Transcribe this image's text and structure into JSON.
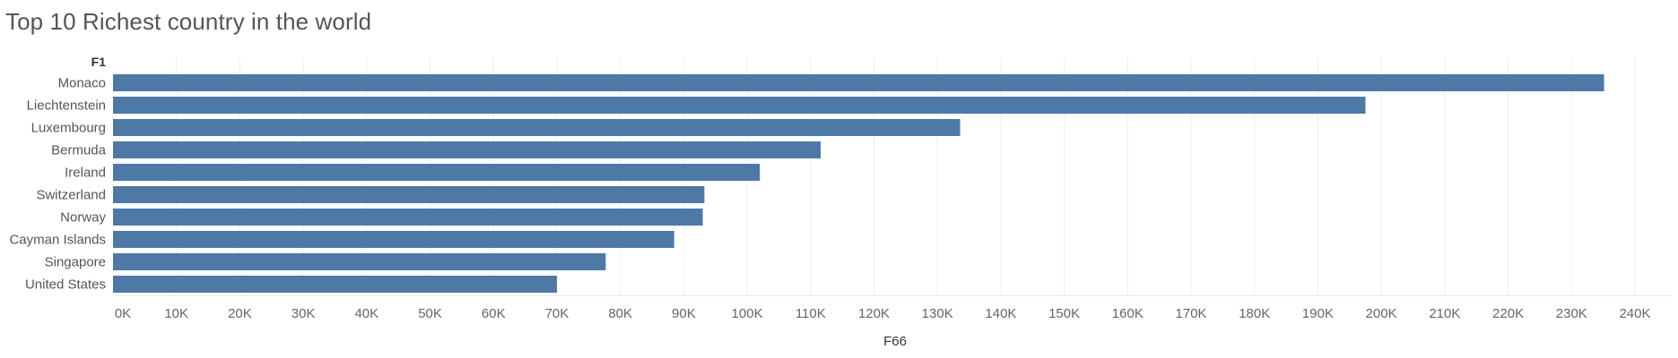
{
  "chart_data": {
    "type": "bar",
    "orientation": "horizontal",
    "title": "Top 10 Richest country in the world",
    "row_header": "F1",
    "xlabel": "F66",
    "categories": [
      "Monaco",
      "Liechtenstein",
      "Luxembourg",
      "Bermuda",
      "Ireland",
      "Switzerland",
      "Norway",
      "Cayman Islands",
      "Singapore",
      "United States"
    ],
    "values": [
      235133,
      197504,
      133590,
      111600,
      102000,
      93260,
      93000,
      88500,
      77700,
      70000
    ],
    "xlim": [
      0,
      245000
    ],
    "xticks": [
      0,
      10000,
      20000,
      30000,
      40000,
      50000,
      60000,
      70000,
      80000,
      90000,
      100000,
      110000,
      120000,
      130000,
      140000,
      150000,
      160000,
      170000,
      180000,
      190000,
      200000,
      210000,
      220000,
      230000,
      240000
    ],
    "xtick_labels": [
      "0K",
      "10K",
      "20K",
      "30K",
      "40K",
      "50K",
      "60K",
      "70K",
      "80K",
      "90K",
      "100K",
      "110K",
      "120K",
      "130K",
      "140K",
      "150K",
      "160K",
      "170K",
      "180K",
      "190K",
      "200K",
      "210K",
      "220K",
      "230K",
      "240K"
    ],
    "grid": true,
    "bar_color": "#4e79a7"
  }
}
